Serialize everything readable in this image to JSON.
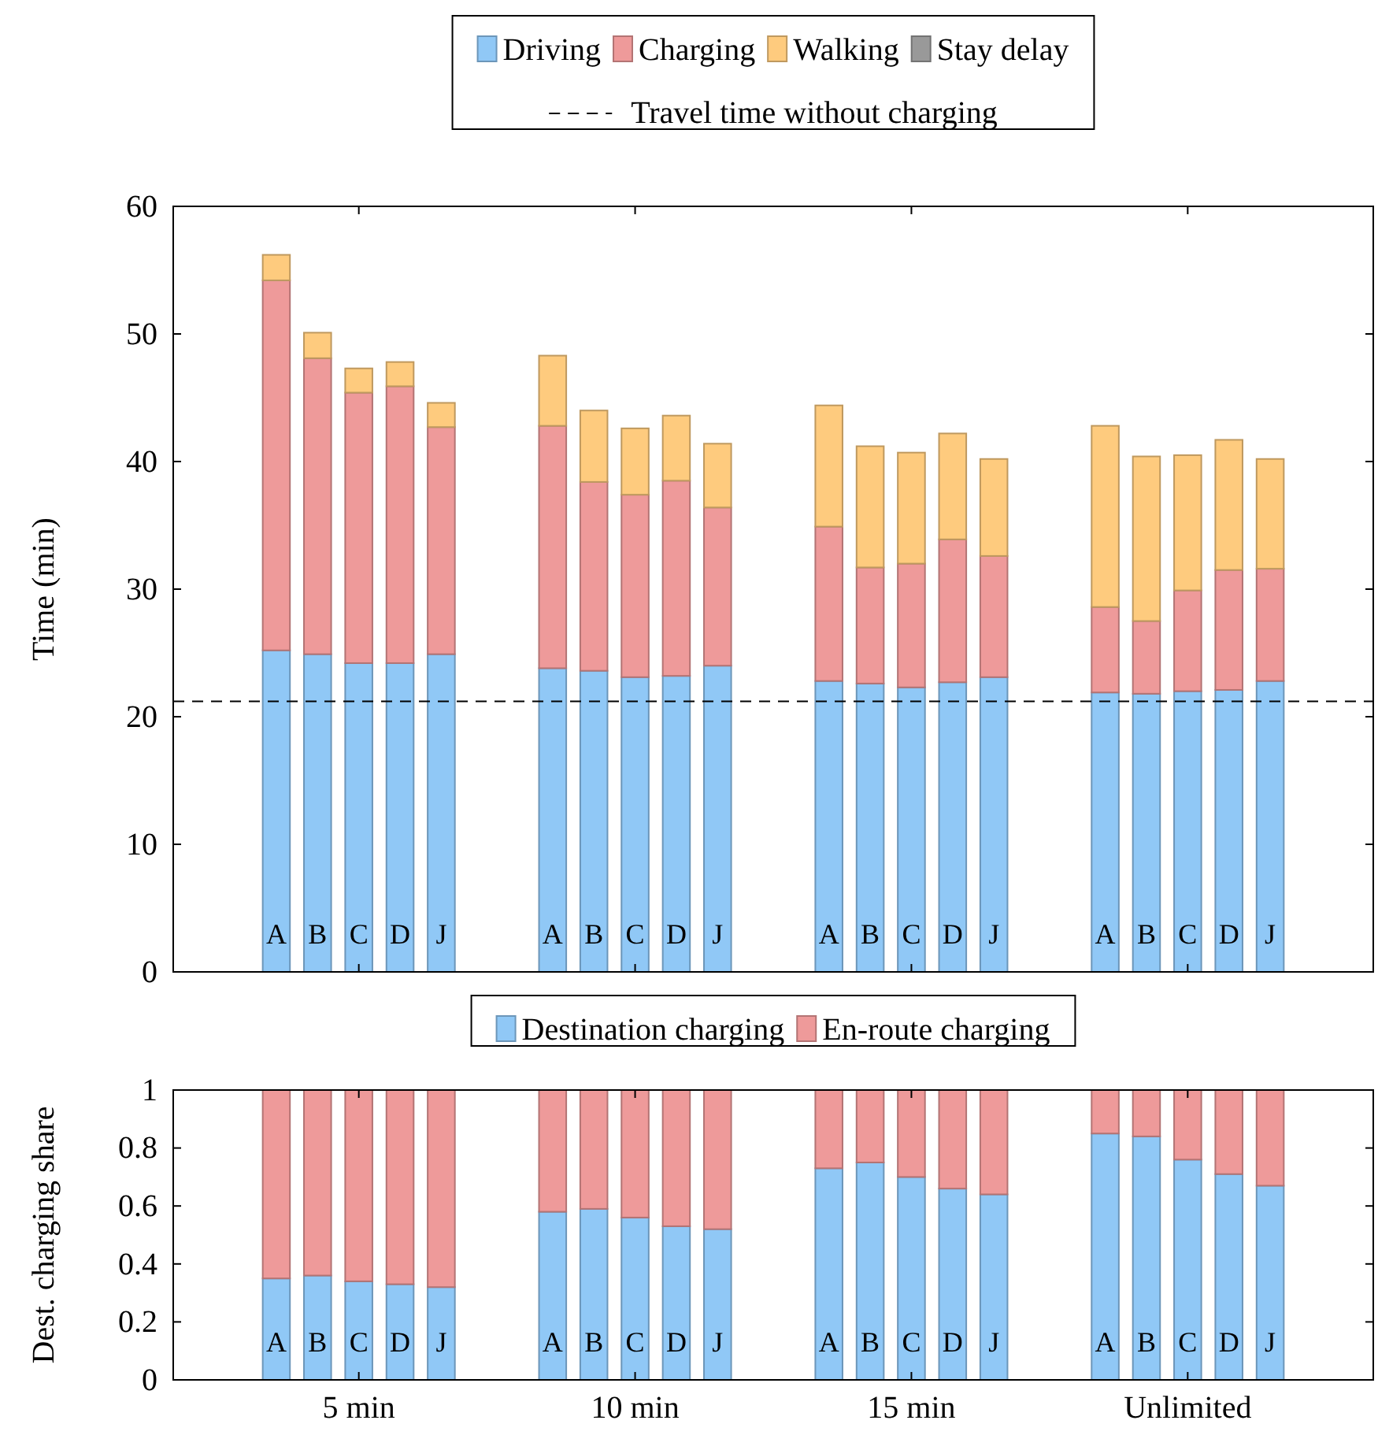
{
  "chart_data": [
    {
      "type": "bar",
      "ylabel": "Time (min)",
      "stacked": true,
      "legend": "top",
      "ylim": [
        0,
        60
      ],
      "yticks": [
        0,
        10,
        20,
        30,
        40,
        50,
        60
      ],
      "categories": [
        "A",
        "B",
        "C",
        "D",
        "J",
        "A",
        "B",
        "C",
        "D",
        "J",
        "A",
        "B",
        "C",
        "D",
        "J",
        "A",
        "B",
        "C",
        "D",
        "J"
      ],
      "series": [
        {
          "name": "Driving",
          "color": "#90c8f6",
          "values": [
            25.2,
            24.9,
            24.2,
            24.2,
            24.9,
            23.8,
            23.6,
            23.1,
            23.2,
            24.0,
            22.8,
            22.6,
            22.3,
            22.7,
            23.1,
            21.9,
            21.8,
            22.0,
            22.1,
            22.8
          ]
        },
        {
          "name": "Charging",
          "color": "#ee9a9a",
          "values": [
            29.0,
            23.2,
            21.2,
            21.7,
            17.8,
            19.0,
            14.8,
            14.3,
            15.3,
            12.4,
            12.1,
            9.1,
            9.7,
            11.2,
            9.5,
            6.7,
            5.7,
            7.9,
            9.4,
            8.8
          ]
        },
        {
          "name": "Walking",
          "color": "#fecb7e",
          "values": [
            2.0,
            2.0,
            1.9,
            1.9,
            1.9,
            5.5,
            5.6,
            5.2,
            5.1,
            5.0,
            9.5,
            9.5,
            8.7,
            8.3,
            7.6,
            14.2,
            12.9,
            10.6,
            10.2,
            8.6
          ]
        },
        {
          "name": "Stay delay",
          "color": "#999999",
          "values": [
            0,
            0,
            0,
            0,
            0,
            0,
            0,
            0,
            0,
            0,
            0,
            0,
            0,
            0,
            0,
            0,
            0,
            0,
            0,
            0
          ]
        }
      ],
      "ref_lines": [
        {
          "axis": "y",
          "value": 21.2,
          "label": "Travel time without charging",
          "color": "#000000",
          "line_style": "dashed"
        }
      ]
    },
    {
      "type": "bar",
      "ylabel": "Dest. charging share",
      "stacked": true,
      "legend": "top",
      "ylim": [
        0,
        1
      ],
      "yticks": [
        0,
        0.2,
        0.4,
        0.6,
        0.8,
        1
      ],
      "categories": [
        "A",
        "B",
        "C",
        "D",
        "J",
        "A",
        "B",
        "C",
        "D",
        "J",
        "A",
        "B",
        "C",
        "D",
        "J",
        "A",
        "B",
        "C",
        "D",
        "J"
      ],
      "series": [
        {
          "name": "Destination charging",
          "color": "#90c8f6",
          "values": [
            0.35,
            0.36,
            0.34,
            0.33,
            0.32,
            0.58,
            0.59,
            0.56,
            0.53,
            0.52,
            0.73,
            0.75,
            0.7,
            0.66,
            0.64,
            0.85,
            0.84,
            0.76,
            0.71,
            0.67
          ]
        },
        {
          "name": "En-route charging",
          "color": "#ee9a9a",
          "values": [
            0.65,
            0.64,
            0.66,
            0.67,
            0.68,
            0.42,
            0.41,
            0.44,
            0.47,
            0.48,
            0.27,
            0.25,
            0.3,
            0.34,
            0.36,
            0.15,
            0.16,
            0.24,
            0.29,
            0.33
          ]
        }
      ],
      "annotations": [
        "5 min",
        "10 min",
        "15 min",
        "Unlimited"
      ]
    }
  ]
}
